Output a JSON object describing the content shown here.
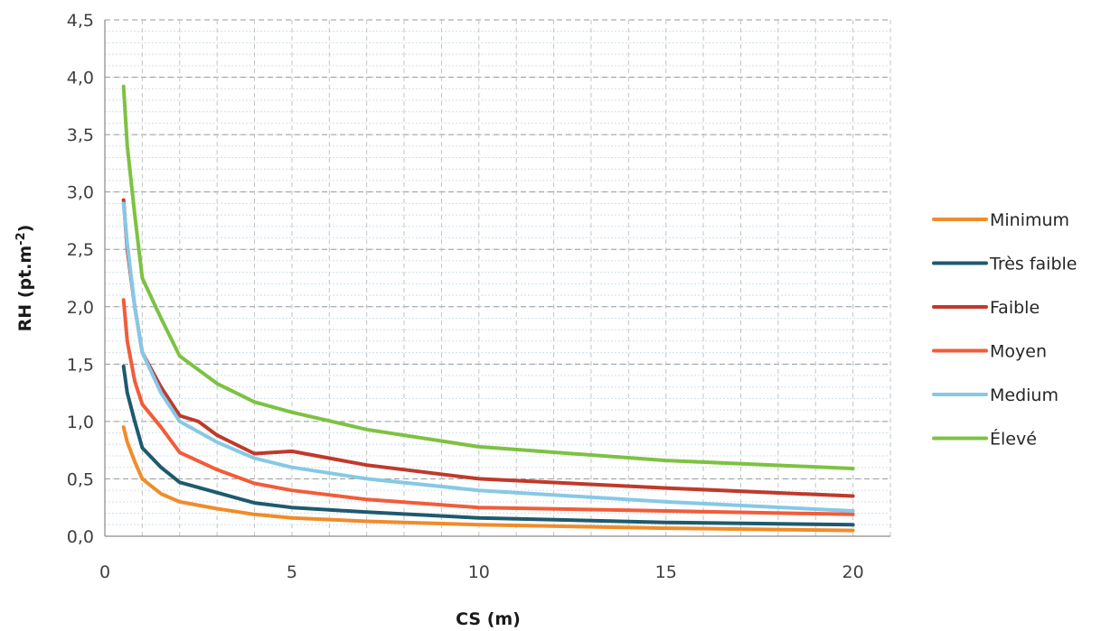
{
  "chart_data": {
    "type": "line",
    "xlabel": "CS (m)",
    "ylabel": "RH (pt.m",
    "ylabel_sup": "-2",
    "ylabel_end": ")",
    "xlim": [
      0,
      21
    ],
    "ylim": [
      0,
      4.5
    ],
    "x_ticks": [
      0,
      5,
      10,
      15,
      20
    ],
    "x_tick_labels": [
      "0",
      "5",
      "10",
      "15",
      "20"
    ],
    "y_ticks": [
      0,
      0.5,
      1.0,
      1.5,
      2.0,
      2.5,
      3.0,
      3.5,
      4.0,
      4.5
    ],
    "y_tick_labels": [
      "0,0",
      "0,5",
      "1,0",
      "1,5",
      "2,0",
      "2,5",
      "3,0",
      "3,5",
      "4,0",
      "4,5"
    ],
    "grid": "dashed horizontal and vertical",
    "legend_position": "right",
    "series": [
      {
        "name": "Minimum",
        "color": "#f08c2a",
        "points": [
          [
            0.5,
            0.95
          ],
          [
            0.6,
            0.82
          ],
          [
            0.8,
            0.65
          ],
          [
            1,
            0.5
          ],
          [
            1.5,
            0.37
          ],
          [
            2,
            0.3
          ],
          [
            3,
            0.24
          ],
          [
            4,
            0.19
          ],
          [
            5,
            0.16
          ],
          [
            7,
            0.13
          ],
          [
            10,
            0.1
          ],
          [
            15,
            0.07
          ],
          [
            20,
            0.05
          ]
        ]
      },
      {
        "name": "Très faible",
        "color": "#1e5a6e",
        "points": [
          [
            0.5,
            1.48
          ],
          [
            0.6,
            1.25
          ],
          [
            0.8,
            1.0
          ],
          [
            1,
            0.77
          ],
          [
            1.5,
            0.6
          ],
          [
            2,
            0.47
          ],
          [
            3,
            0.38
          ],
          [
            4,
            0.29
          ],
          [
            5,
            0.25
          ],
          [
            7,
            0.21
          ],
          [
            10,
            0.16
          ],
          [
            15,
            0.12
          ],
          [
            20,
            0.1
          ]
        ]
      },
      {
        "name": "Faible",
        "color": "#c0392b",
        "points": [
          [
            0.5,
            2.93
          ],
          [
            0.6,
            2.5
          ],
          [
            0.8,
            2.0
          ],
          [
            1,
            1.6
          ],
          [
            1.5,
            1.3
          ],
          [
            2,
            1.05
          ],
          [
            2.5,
            1.0
          ],
          [
            3,
            0.88
          ],
          [
            4,
            0.72
          ],
          [
            5,
            0.74
          ],
          [
            7,
            0.62
          ],
          [
            10,
            0.5
          ],
          [
            15,
            0.42
          ],
          [
            20,
            0.35
          ]
        ]
      },
      {
        "name": "Moyen",
        "color": "#f25c3a",
        "points": [
          [
            0.5,
            2.06
          ],
          [
            0.6,
            1.7
          ],
          [
            0.8,
            1.35
          ],
          [
            1,
            1.15
          ],
          [
            1.5,
            0.95
          ],
          [
            2,
            0.73
          ],
          [
            3,
            0.58
          ],
          [
            4,
            0.46
          ],
          [
            5,
            0.4
          ],
          [
            7,
            0.32
          ],
          [
            10,
            0.25
          ],
          [
            15,
            0.22
          ],
          [
            20,
            0.19
          ]
        ]
      },
      {
        "name": "Medium",
        "color": "#86c8e6",
        "points": [
          [
            0.5,
            2.9
          ],
          [
            0.6,
            2.55
          ],
          [
            0.8,
            2.0
          ],
          [
            1,
            1.6
          ],
          [
            1.5,
            1.25
          ],
          [
            2,
            1.0
          ],
          [
            3,
            0.82
          ],
          [
            4,
            0.68
          ],
          [
            5,
            0.6
          ],
          [
            7,
            0.5
          ],
          [
            10,
            0.4
          ],
          [
            15,
            0.3
          ],
          [
            20,
            0.22
          ]
        ]
      },
      {
        "name": "Élevé",
        "color": "#7dc242",
        "points": [
          [
            0.5,
            3.92
          ],
          [
            0.6,
            3.4
          ],
          [
            0.8,
            2.8
          ],
          [
            1,
            2.25
          ],
          [
            1.5,
            1.9
          ],
          [
            2,
            1.57
          ],
          [
            3,
            1.33
          ],
          [
            4,
            1.17
          ],
          [
            5,
            1.08
          ],
          [
            7,
            0.93
          ],
          [
            10,
            0.78
          ],
          [
            15,
            0.66
          ],
          [
            20,
            0.59
          ]
        ]
      }
    ]
  }
}
